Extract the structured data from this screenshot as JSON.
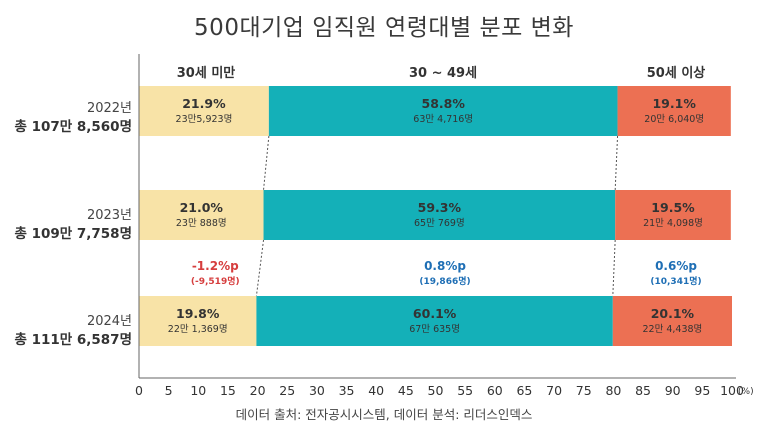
{
  "title": "500대기업 임직원 연령대별 분포 변화",
  "source": "데이터 출처: 전자공시시스템, 데이터 분석: 리더스인덱스",
  "chart_data": {
    "type": "bar",
    "orientation": "horizontal",
    "stacked": true,
    "xlim": [
      0,
      100
    ],
    "x_ticks": [
      "0",
      "5",
      "10",
      "15",
      "20",
      "25",
      "30",
      "35",
      "40",
      "45",
      "50",
      "55",
      "60",
      "65",
      "70",
      "75",
      "80",
      "85",
      "90",
      "95",
      "100"
    ],
    "x_unit": "(%)",
    "grid": false,
    "colors": {
      "under30": "#f8e3a7",
      "mid": "#14b0b8",
      "over50": "#ec7053"
    },
    "series": [
      {
        "key": "under30",
        "name": "30세 미만"
      },
      {
        "key": "mid",
        "name": "30 ~ 49세"
      },
      {
        "key": "over50",
        "name": "50세 이상"
      }
    ],
    "rows": [
      {
        "year": "2022년",
        "total": "총 107만 8,560명",
        "segments": [
          {
            "value": 21.9,
            "pct": "21.9%",
            "count": "23만5,923명"
          },
          {
            "value": 58.8,
            "pct": "58.8%",
            "count": "63만 4,716명"
          },
          {
            "value": 19.1,
            "pct": "19.1%",
            "count": "20만 6,040명"
          }
        ]
      },
      {
        "year": "2023년",
        "total": "총 109만 7,758명",
        "segments": [
          {
            "value": 21.0,
            "pct": "21.0%",
            "count": "23만 888명"
          },
          {
            "value": 59.3,
            "pct": "59.3%",
            "count": "65만 769명"
          },
          {
            "value": 19.5,
            "pct": "19.5%",
            "count": "21만 4,098명"
          }
        ]
      },
      {
        "year": "2024년",
        "total": "총 111만 6,587명",
        "segments": [
          {
            "value": 19.8,
            "pct": "19.8%",
            "count": "22만 1,369명"
          },
          {
            "value": 60.1,
            "pct": "60.1%",
            "count": "67만 635명"
          },
          {
            "value": 20.1,
            "pct": "20.1%",
            "count": "22만 4,438명"
          }
        ]
      }
    ],
    "changes": [
      {
        "pct": "-1.2%p",
        "count": "(-9,519명)",
        "color": "#d63e3e"
      },
      {
        "pct": "0.8%p",
        "count": "(19,866명)",
        "color": "#1f6fb5"
      },
      {
        "pct": "0.6%p",
        "count": "(10,341명)",
        "color": "#1f6fb5"
      }
    ]
  }
}
